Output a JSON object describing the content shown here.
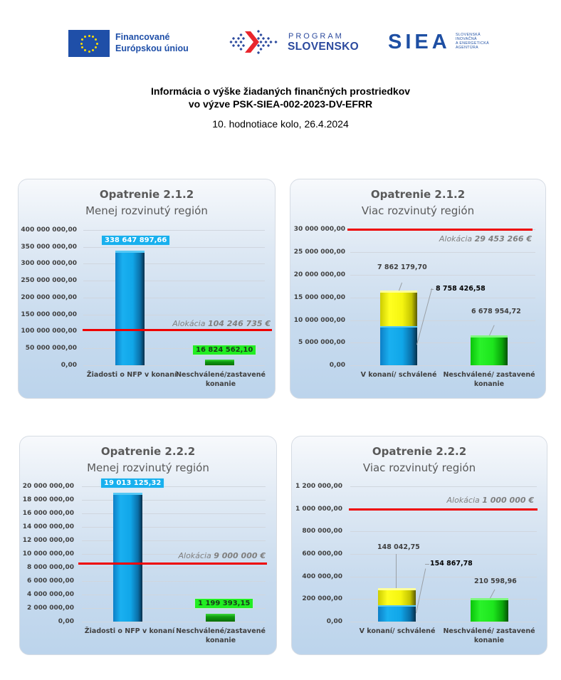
{
  "logos": {
    "eu": {
      "icon": "eu-flag-icon",
      "line1": "Financované",
      "line2": "Európskou úniou",
      "flag_color": "#1f4fa8",
      "star_color": "#ffdd00"
    },
    "program": {
      "icon": "program-slovensko-mark-icon",
      "small": "PROGRAM",
      "big": "SLOVENSKO",
      "color": "#2c4a9e",
      "accent": "#e8262d"
    },
    "siea": {
      "word": "SIEA",
      "lines": [
        "SLOVENSKÁ",
        "INOVAČNÁ",
        "A ENERGETICKÁ",
        "AGENTÚRA"
      ],
      "color": "#1e4fa3"
    }
  },
  "header": {
    "title_line1": "Informácia o výške žiadaných finančných prostriedkov",
    "title_line2": "vo výzve PSK-SIEA-002-2023-DV-EFRR",
    "subtitle": "10. hodnotiace kolo, 26.4.2024"
  },
  "colors": {
    "blue": "#10a6e8",
    "green": "#1de61d",
    "yellow": "#f5f510",
    "allocation_line": "#ee0000",
    "panel_top": "#f7f9fc",
    "panel_bottom": "#bcd4ec"
  },
  "charts": [
    {
      "title": "Opatrenie 2.1.2",
      "subtitle": "Menej rozvinutý región",
      "yticks": [
        "400 000 000,00",
        "350 000 000,00",
        "300 000 000,00",
        "250 000 000,00",
        "200 000 000,00",
        "150 000 000,00",
        "100 000 000,00",
        "50 000 000,00",
        "0,00"
      ],
      "categories": [
        "Žiadosti o NFP v konaní",
        "Neschválené/zastavené",
        "konanie"
      ],
      "bar_labels": [
        "338 647 897,66",
        "16 824 562,10"
      ],
      "allocation": {
        "prefix": "Alokácia ",
        "amount": "104 246 735 €"
      }
    },
    {
      "title": "Opatrenie 2.1.2",
      "subtitle": "Viac rozvinutý región",
      "yticks": [
        "30 000 000,00",
        "25 000 000,00",
        "20 000 000,00",
        "15 000 000,00",
        "10 000 000,00",
        "5 000 000,00",
        "0,00"
      ],
      "categories": [
        "V konaní/ schválené",
        "Neschválené/ zastavené",
        "konanie"
      ],
      "bar_labels": [
        "7 862 179,70",
        "8 758 426,58",
        "6 678 954,72"
      ],
      "allocation": {
        "prefix": "Alokácia ",
        "amount": "29 453 266 €"
      }
    },
    {
      "title": "Opatrenie 2.2.2",
      "subtitle": "Menej rozvinutý  región",
      "yticks": [
        "20 000 000,00",
        "18 000 000,00",
        "16 000 000,00",
        "14 000 000,00",
        "12 000 000,00",
        "10 000 000,00",
        "8 000 000,00",
        "6 000 000,00",
        "4 000 000,00",
        "2 000 000,00",
        "0,00"
      ],
      "categories": [
        "Žiadosti o NFP v konaní",
        "Neschválené/zastavené",
        "konanie"
      ],
      "bar_labels": [
        "19 013 125,32",
        "1 199 393,15"
      ],
      "allocation": {
        "prefix": "Alokácia ",
        "amount": "9 000 000 €"
      }
    },
    {
      "title": "Opatrenie 2.2.2",
      "subtitle": "Viac rozvinutý región",
      "yticks": [
        "1 200 000,00",
        "1 000 000,00",
        "800 000,00",
        "600 000,00",
        "400 000,00",
        "200 000,00",
        "0,00"
      ],
      "categories": [
        "V konaní/ schválené",
        "Neschválené/ zastavené",
        "konanie"
      ],
      "bar_labels": [
        "148 042,75",
        "154 867,78",
        "210 598,96"
      ],
      "allocation": {
        "prefix": "Alokácia ",
        "amount": "1 000 000 €"
      }
    }
  ],
  "chart_data": [
    {
      "type": "bar",
      "title": "Opatrenie 2.1.2 — Menej rozvinutý región",
      "categories": [
        "Žiadosti o NFP v konaní",
        "Neschválené/zastavené konanie"
      ],
      "values": [
        338647897.66,
        16824562.1
      ],
      "colors": [
        "#10a6e8",
        "#1de61d"
      ],
      "reference_line": {
        "label": "Alokácia 104 246 735 €",
        "value": 104246735
      },
      "xlabel": "",
      "ylabel": "",
      "ylim": [
        0,
        400000000
      ],
      "ytick_step": 50000000,
      "grid": true,
      "legend": "none"
    },
    {
      "type": "bar",
      "stacked": true,
      "title": "Opatrenie 2.1.2 — Viac rozvinutý región",
      "categories": [
        "V konaní/ schválené",
        "Neschválené/ zastavené konanie"
      ],
      "series": [
        {
          "name": "schválené (blue)",
          "color": "#10a6e8",
          "values": [
            8758426.58,
            null
          ]
        },
        {
          "name": "v konaní (yellow)",
          "color": "#f5f510",
          "values": [
            7862179.7,
            null
          ]
        },
        {
          "name": "neschválené/zastavené (green)",
          "color": "#1de61d",
          "values": [
            null,
            6678954.72
          ]
        }
      ],
      "reference_line": {
        "label": "Alokácia 29 453 266 €",
        "value": 29453266
      },
      "xlabel": "",
      "ylabel": "",
      "ylim": [
        0,
        30000000
      ],
      "ytick_step": 5000000,
      "grid": true,
      "legend": "none"
    },
    {
      "type": "bar",
      "title": "Opatrenie 2.2.2 — Menej rozvinutý región",
      "categories": [
        "Žiadosti o NFP v konaní",
        "Neschválené/zastavené konanie"
      ],
      "values": [
        19013125.32,
        1199393.15
      ],
      "colors": [
        "#10a6e8",
        "#1de61d"
      ],
      "reference_line": {
        "label": "Alokácia 9 000 000 €",
        "value": 9000000
      },
      "xlabel": "",
      "ylabel": "",
      "ylim": [
        0,
        20000000
      ],
      "ytick_step": 2000000,
      "grid": true,
      "legend": "none"
    },
    {
      "type": "bar",
      "stacked": true,
      "title": "Opatrenie 2.2.2 — Viac rozvinutý región",
      "categories": [
        "V konaní/ schválené",
        "Neschválené/ zastavené konanie"
      ],
      "series": [
        {
          "name": "schválené (blue)",
          "color": "#10a6e8",
          "values": [
            154867.78,
            null
          ]
        },
        {
          "name": "v konaní (yellow)",
          "color": "#f5f510",
          "values": [
            148042.75,
            null
          ]
        },
        {
          "name": "neschválené/zastavené (green)",
          "color": "#1de61d",
          "values": [
            null,
            210598.96
          ]
        }
      ],
      "reference_line": {
        "label": "Alokácia 1 000 000 €",
        "value": 1000000
      },
      "xlabel": "",
      "ylabel": "",
      "ylim": [
        0,
        1200000
      ],
      "ytick_step": 200000,
      "grid": true,
      "legend": "none"
    }
  ]
}
